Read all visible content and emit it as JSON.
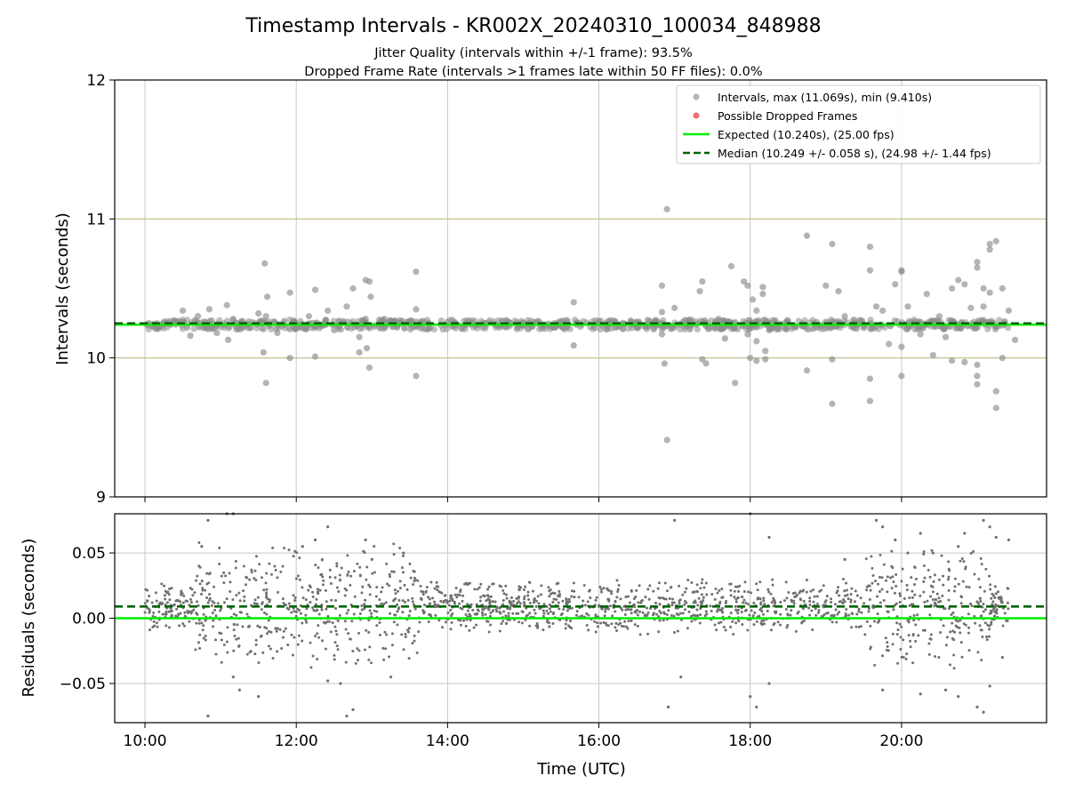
{
  "chart_data": [
    {
      "type": "scatter",
      "title": "Timestamp Intervals - KR002X_20240310_100034_848988",
      "subtitle_lines": [
        "Jitter Quality (intervals within +/-1 frame): 93.5%",
        "Dropped Frame Rate (intervals >1 frames late within 50 FF files): 0.0%"
      ],
      "ylabel": "Intervals (seconds)",
      "ylim": [
        9,
        12
      ],
      "yticks": [
        "9",
        "10",
        "11",
        "12"
      ],
      "xlim": [
        "09:36",
        "21:55"
      ],
      "xticks": [
        "10:00",
        "12:00",
        "14:00",
        "16:00",
        "18:00",
        "20:00"
      ],
      "grid": true,
      "legend_position": "top-right",
      "legend": [
        "Intervals, max (11.069s), min (9.410s)",
        "Possible Dropped Frames",
        "Expected (10.240s), (25.00 fps)",
        "Median (10.249 +/- 0.058 s), (24.98 +/- 1.44 fps)"
      ],
      "reference_lines": [
        {
          "name": "Expected",
          "value": 10.24,
          "color": "#00ee00",
          "style": "solid"
        },
        {
          "name": "Median",
          "value": 10.249,
          "color": "#006400",
          "style": "dashed"
        },
        {
          "name": "+1 frame band",
          "value": 11.0,
          "color": "#c8c088",
          "style": "solid"
        },
        {
          "name": "-1 frame band",
          "value": 10.0,
          "color": "#c8c088",
          "style": "solid"
        }
      ],
      "series": [
        {
          "name": "Intervals",
          "color": "#8c8c8c",
          "points": [
            [
              "10:03",
              10.25
            ],
            [
              "10:15",
              10.26
            ],
            [
              "10:30",
              10.34
            ],
            [
              "10:36",
              10.16
            ],
            [
              "10:42",
              10.3
            ],
            [
              "10:48",
              10.22
            ],
            [
              "10:51",
              10.35
            ],
            [
              "10:57",
              10.18
            ],
            [
              "11:05",
              10.38
            ],
            [
              "11:06",
              10.13
            ],
            [
              "11:10",
              10.28
            ],
            [
              "11:18",
              10.22
            ],
            [
              "11:30",
              10.32
            ],
            [
              "11:36",
              10.3
            ],
            [
              "11:45",
              10.18
            ],
            [
              "11:34",
              10.04
            ],
            [
              "11:35",
              10.68
            ],
            [
              "11:36",
              9.82
            ],
            [
              "11:37",
              10.44
            ],
            [
              "11:55",
              10.47
            ],
            [
              "11:55",
              10.0
            ],
            [
              "12:10",
              10.3
            ],
            [
              "12:15",
              10.49
            ],
            [
              "12:15",
              10.01
            ],
            [
              "12:25",
              10.34
            ],
            [
              "12:30",
              10.2
            ],
            [
              "12:40",
              10.37
            ],
            [
              "12:50",
              10.15
            ],
            [
              "12:55",
              10.28
            ],
            [
              "12:45",
              10.5
            ],
            [
              "12:50",
              10.04
            ],
            [
              "12:52",
              10.27
            ],
            [
              "12:55",
              10.56
            ],
            [
              "12:58",
              10.55
            ],
            [
              "12:56",
              10.07
            ],
            [
              "12:58",
              9.93
            ],
            [
              "12:59",
              10.44
            ],
            [
              "13:10",
              10.28
            ],
            [
              "13:20",
              10.22
            ],
            [
              "13:30",
              10.24
            ],
            [
              "13:35",
              10.35
            ],
            [
              "13:35",
              10.62
            ],
            [
              "13:35",
              9.87
            ],
            [
              "13:45",
              10.25
            ],
            [
              "14:00",
              10.26
            ],
            [
              "14:30",
              10.25
            ],
            [
              "15:00",
              10.25
            ],
            [
              "15:30",
              10.26
            ],
            [
              "15:40",
              10.4
            ],
            [
              "15:40",
              10.09
            ],
            [
              "16:00",
              10.25
            ],
            [
              "16:30",
              10.26
            ],
            [
              "16:50",
              10.52
            ],
            [
              "16:50",
              10.33
            ],
            [
              "16:50",
              10.17
            ],
            [
              "16:52",
              9.96
            ],
            [
              "16:54",
              11.07
            ],
            [
              "16:54",
              9.41
            ],
            [
              "17:00",
              10.36
            ],
            [
              "17:10",
              10.25
            ],
            [
              "17:20",
              10.48
            ],
            [
              "17:22",
              10.55
            ],
            [
              "17:22",
              9.99
            ],
            [
              "17:25",
              9.96
            ],
            [
              "17:35",
              10.28
            ],
            [
              "17:40",
              10.14
            ],
            [
              "17:45",
              10.66
            ],
            [
              "17:48",
              9.82
            ],
            [
              "17:55",
              10.55
            ],
            [
              "17:58",
              10.52
            ],
            [
              "17:58",
              10.17
            ],
            [
              "18:00",
              10.0
            ],
            [
              "18:02",
              10.42
            ],
            [
              "18:05",
              10.34
            ],
            [
              "18:05",
              10.12
            ],
            [
              "18:05",
              9.98
            ],
            [
              "18:10",
              10.51
            ],
            [
              "18:10",
              10.46
            ],
            [
              "18:12",
              10.05
            ],
            [
              "18:12",
              9.99
            ],
            [
              "18:15",
              10.2
            ],
            [
              "18:30",
              10.25
            ],
            [
              "18:45",
              10.88
            ],
            [
              "18:45",
              9.91
            ],
            [
              "18:50",
              10.21
            ],
            [
              "19:00",
              10.52
            ],
            [
              "19:05",
              10.82
            ],
            [
              "19:05",
              9.67
            ],
            [
              "19:05",
              9.99
            ],
            [
              "19:10",
              10.48
            ],
            [
              "19:15",
              10.3
            ],
            [
              "19:35",
              10.8
            ],
            [
              "19:35",
              10.63
            ],
            [
              "19:35",
              9.85
            ],
            [
              "19:35",
              9.69
            ],
            [
              "19:40",
              10.37
            ],
            [
              "19:45",
              10.34
            ],
            [
              "19:50",
              10.1
            ],
            [
              "19:55",
              10.53
            ],
            [
              "20:00",
              10.62
            ],
            [
              "20:00",
              10.63
            ],
            [
              "20:00",
              9.87
            ],
            [
              "20:00",
              10.08
            ],
            [
              "20:05",
              10.37
            ],
            [
              "20:10",
              10.26
            ],
            [
              "20:15",
              10.17
            ],
            [
              "20:20",
              10.46
            ],
            [
              "20:25",
              10.02
            ],
            [
              "20:30",
              10.3
            ],
            [
              "20:35",
              10.15
            ],
            [
              "20:40",
              10.5
            ],
            [
              "20:40",
              9.98
            ],
            [
              "20:45",
              10.56
            ],
            [
              "20:50",
              10.53
            ],
            [
              "20:50",
              9.97
            ],
            [
              "20:55",
              10.36
            ],
            [
              "21:00",
              10.69
            ],
            [
              "21:00",
              10.65
            ],
            [
              "21:00",
              9.95
            ],
            [
              "21:00",
              9.81
            ],
            [
              "21:00",
              9.87
            ],
            [
              "21:05",
              10.5
            ],
            [
              "21:05",
              10.37
            ],
            [
              "21:10",
              10.82
            ],
            [
              "21:10",
              10.78
            ],
            [
              "21:10",
              10.47
            ],
            [
              "21:15",
              9.76
            ],
            [
              "21:15",
              9.64
            ],
            [
              "21:15",
              10.84
            ],
            [
              "21:15",
              10.22
            ],
            [
              "21:20",
              10.5
            ],
            [
              "21:20",
              10.0
            ],
            [
              "21:25",
              10.34
            ],
            [
              "21:30",
              10.13
            ]
          ]
        },
        {
          "name": "Possible Dropped Frames",
          "color": "#e84040",
          "points": []
        }
      ]
    },
    {
      "type": "scatter",
      "ylabel": "Residuals (seconds)",
      "xlabel": "Time (UTC)",
      "ylim": [
        -0.08,
        0.08
      ],
      "yticks": [
        "−0.05",
        "0.00",
        "0.05"
      ],
      "ytick_values": [
        -0.05,
        0.0,
        0.05
      ],
      "xlim": [
        "09:36",
        "21:55"
      ],
      "xticks": [
        "10:00",
        "12:00",
        "14:00",
        "16:00",
        "18:00",
        "20:00"
      ],
      "grid": true,
      "reference_lines": [
        {
          "name": "Expected",
          "value": 0.0,
          "color": "#00ee00",
          "style": "solid"
        },
        {
          "name": "Median",
          "value": 0.009,
          "color": "#006400",
          "style": "dashed"
        }
      ],
      "series": [
        {
          "name": "Residuals",
          "color": "#707070",
          "points": [
            [
              "10:45",
              0.055
            ],
            [
              "10:50",
              0.075
            ],
            [
              "10:50",
              -0.075
            ],
            [
              "11:05",
              0.08
            ],
            [
              "11:10",
              0.08
            ],
            [
              "11:10",
              -0.045
            ],
            [
              "11:15",
              -0.055
            ],
            [
              "11:30",
              -0.06
            ],
            [
              "12:05",
              0.055
            ],
            [
              "12:15",
              0.06
            ],
            [
              "12:25",
              0.07
            ],
            [
              "12:25",
              -0.048
            ],
            [
              "12:35",
              -0.05
            ],
            [
              "12:40",
              -0.075
            ],
            [
              "12:55",
              0.06
            ],
            [
              "13:00",
              0.045
            ],
            [
              "13:15",
              -0.045
            ],
            [
              "13:25",
              0.05
            ],
            [
              "12:45",
              -0.07
            ],
            [
              "16:55",
              -0.068
            ],
            [
              "17:00",
              0.075
            ],
            [
              "17:05",
              -0.045
            ],
            [
              "18:00",
              0.08
            ],
            [
              "18:00",
              -0.06
            ],
            [
              "18:05",
              -0.068
            ],
            [
              "18:15",
              0.062
            ],
            [
              "18:15",
              -0.05
            ],
            [
              "19:15",
              0.045
            ],
            [
              "19:40",
              0.075
            ],
            [
              "19:45",
              -0.055
            ],
            [
              "19:45",
              0.07
            ],
            [
              "19:55",
              0.06
            ],
            [
              "20:05",
              0.05
            ],
            [
              "20:15",
              0.065
            ],
            [
              "20:15",
              -0.058
            ],
            [
              "20:25",
              0.05
            ],
            [
              "20:35",
              -0.055
            ],
            [
              "20:45",
              0.055
            ],
            [
              "20:45",
              -0.06
            ],
            [
              "20:50",
              0.065
            ],
            [
              "21:00",
              -0.068
            ],
            [
              "21:05",
              0.075
            ],
            [
              "21:05",
              -0.072
            ],
            [
              "21:10",
              0.07
            ],
            [
              "21:10",
              -0.052
            ],
            [
              "21:15",
              0.062
            ],
            [
              "21:20",
              -0.03
            ],
            [
              "21:25",
              0.06
            ]
          ]
        }
      ]
    }
  ]
}
